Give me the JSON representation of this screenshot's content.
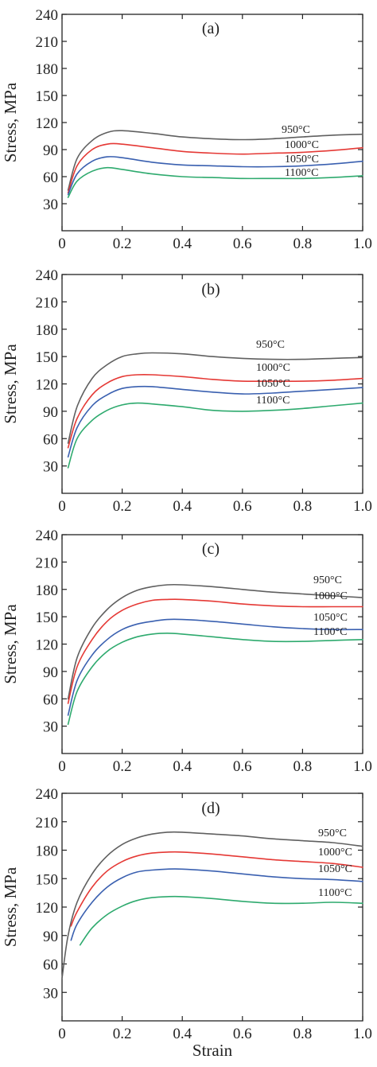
{
  "chart_data": [
    {
      "type": "line",
      "panel_label": "(a)",
      "xlabel": "",
      "ylabel": "Stress, MPa",
      "xlim": [
        0,
        1.0
      ],
      "ylim": [
        0,
        240
      ],
      "x_ticks": [
        "0",
        "0.2",
        "0.4",
        "0.6",
        "0.8",
        "1.0"
      ],
      "y_ticks": [
        "30",
        "60",
        "90",
        "120",
        "150",
        "180",
        "210",
        "240"
      ],
      "series": [
        {
          "name": "950°C",
          "color": "#606060",
          "x": [
            0.02,
            0.05,
            0.1,
            0.15,
            0.2,
            0.3,
            0.4,
            0.5,
            0.6,
            0.7,
            0.8,
            0.9,
            1.0
          ],
          "y": [
            45,
            80,
            100,
            109,
            111,
            108,
            104,
            102,
            101,
            102,
            104,
            106,
            107
          ]
        },
        {
          "name": "1000°C",
          "color": "#e53935",
          "x": [
            0.02,
            0.05,
            0.1,
            0.15,
            0.2,
            0.3,
            0.4,
            0.5,
            0.6,
            0.7,
            0.8,
            0.9,
            1.0
          ],
          "y": [
            42,
            72,
            90,
            96,
            96,
            92,
            88,
            86,
            85,
            86,
            87,
            89,
            92
          ]
        },
        {
          "name": "1050°C",
          "color": "#3a60b0",
          "x": [
            0.02,
            0.05,
            0.1,
            0.15,
            0.2,
            0.3,
            0.4,
            0.5,
            0.6,
            0.7,
            0.8,
            0.9,
            1.0
          ],
          "y": [
            40,
            63,
            77,
            82,
            81,
            76,
            73,
            72,
            71,
            71,
            72,
            74,
            77
          ]
        },
        {
          "name": "1100°C",
          "color": "#2eaa6e",
          "x": [
            0.02,
            0.05,
            0.1,
            0.15,
            0.2,
            0.3,
            0.4,
            0.5,
            0.6,
            0.7,
            0.8,
            0.9,
            1.0
          ],
          "y": [
            37,
            55,
            66,
            70,
            68,
            63,
            60,
            59,
            58,
            58,
            58,
            59,
            61
          ]
        }
      ]
    },
    {
      "type": "line",
      "panel_label": "(b)",
      "xlabel": "",
      "ylabel": "Stress, MPa",
      "xlim": [
        0,
        1.0
      ],
      "ylim": [
        0,
        240
      ],
      "x_ticks": [
        "0",
        "0.2",
        "0.4",
        "0.6",
        "0.8",
        "1.0"
      ],
      "y_ticks": [
        "30",
        "60",
        "90",
        "120",
        "150",
        "180",
        "210",
        "240"
      ],
      "series": [
        {
          "name": "950°C",
          "color": "#606060",
          "x": [
            0.02,
            0.05,
            0.1,
            0.15,
            0.2,
            0.25,
            0.3,
            0.4,
            0.5,
            0.6,
            0.7,
            0.8,
            0.9,
            1.0
          ],
          "y": [
            55,
            95,
            126,
            141,
            150,
            153,
            154,
            153,
            150,
            148,
            147,
            147,
            148,
            149
          ]
        },
        {
          "name": "1000°C",
          "color": "#e53935",
          "x": [
            0.02,
            0.05,
            0.1,
            0.15,
            0.2,
            0.25,
            0.3,
            0.4,
            0.5,
            0.6,
            0.7,
            0.8,
            0.9,
            1.0
          ],
          "y": [
            50,
            82,
            108,
            121,
            128,
            130,
            130,
            128,
            125,
            123,
            123,
            123,
            124,
            126
          ]
        },
        {
          "name": "1050°C",
          "color": "#3a60b0",
          "x": [
            0.02,
            0.05,
            0.1,
            0.15,
            0.2,
            0.25,
            0.3,
            0.4,
            0.5,
            0.6,
            0.7,
            0.8,
            0.9,
            1.0
          ],
          "y": [
            40,
            72,
            96,
            108,
            115,
            117,
            117,
            114,
            111,
            109,
            110,
            112,
            114,
            116
          ]
        },
        {
          "name": "1100°C",
          "color": "#2eaa6e",
          "x": [
            0.02,
            0.05,
            0.1,
            0.15,
            0.2,
            0.25,
            0.3,
            0.4,
            0.5,
            0.6,
            0.7,
            0.8,
            0.9,
            1.0
          ],
          "y": [
            28,
            60,
            80,
            91,
            97,
            99,
            98,
            95,
            91,
            90,
            91,
            93,
            96,
            99
          ]
        }
      ]
    },
    {
      "type": "line",
      "panel_label": "(c)",
      "xlabel": "",
      "ylabel": "Stress, MPa",
      "xlim": [
        0,
        1.0
      ],
      "ylim": [
        0,
        240
      ],
      "x_ticks": [
        "0",
        "0.2",
        "0.4",
        "0.6",
        "0.8",
        "1.0"
      ],
      "y_ticks": [
        "30",
        "60",
        "90",
        "120",
        "150",
        "180",
        "210",
        "240"
      ],
      "series": [
        {
          "name": "950°C",
          "color": "#606060",
          "x": [
            0.02,
            0.05,
            0.1,
            0.15,
            0.2,
            0.25,
            0.3,
            0.35,
            0.4,
            0.5,
            0.6,
            0.7,
            0.8,
            0.9,
            1.0
          ],
          "y": [
            60,
            105,
            138,
            158,
            171,
            179,
            183,
            185,
            185,
            183,
            180,
            177,
            175,
            173,
            171
          ]
        },
        {
          "name": "1000°C",
          "color": "#e53935",
          "x": [
            0.02,
            0.05,
            0.1,
            0.15,
            0.2,
            0.25,
            0.3,
            0.35,
            0.4,
            0.5,
            0.6,
            0.7,
            0.8,
            0.9,
            1.0
          ],
          "y": [
            55,
            95,
            125,
            145,
            157,
            164,
            168,
            169,
            169,
            167,
            164,
            162,
            161,
            161,
            161
          ]
        },
        {
          "name": "1050°C",
          "color": "#3a60b0",
          "x": [
            0.02,
            0.05,
            0.1,
            0.15,
            0.2,
            0.25,
            0.3,
            0.35,
            0.4,
            0.5,
            0.6,
            0.7,
            0.8,
            0.9,
            1.0
          ],
          "y": [
            42,
            80,
            108,
            125,
            136,
            142,
            145,
            147,
            147,
            145,
            142,
            139,
            137,
            136,
            136
          ]
        },
        {
          "name": "1100°C",
          "color": "#2eaa6e",
          "x": [
            0.02,
            0.05,
            0.1,
            0.15,
            0.2,
            0.25,
            0.3,
            0.35,
            0.4,
            0.5,
            0.6,
            0.7,
            0.8,
            0.9,
            1.0
          ],
          "y": [
            32,
            68,
            95,
            112,
            122,
            128,
            131,
            132,
            131,
            128,
            125,
            123,
            123,
            124,
            125
          ]
        }
      ]
    },
    {
      "type": "line",
      "panel_label": "(d)",
      "xlabel": "Strain",
      "ylabel": "Stress, MPa",
      "xlim": [
        0,
        1.0
      ],
      "ylim": [
        0,
        240
      ],
      "x_ticks": [
        "0",
        "0.2",
        "0.4",
        "0.6",
        "0.8",
        "1.0"
      ],
      "y_ticks": [
        "30",
        "60",
        "90",
        "120",
        "150",
        "180",
        "210",
        "240"
      ],
      "series": [
        {
          "name": "950°C",
          "color": "#606060",
          "x": [
            0.0,
            0.02,
            0.05,
            0.1,
            0.15,
            0.2,
            0.25,
            0.3,
            0.35,
            0.4,
            0.5,
            0.6,
            0.7,
            0.8,
            0.9,
            1.0
          ],
          "y": [
            45,
            90,
            125,
            155,
            174,
            186,
            193,
            197,
            199,
            199,
            197,
            195,
            192,
            190,
            188,
            184
          ]
        },
        {
          "name": "1000°C",
          "color": "#e53935",
          "x": [
            0.03,
            0.05,
            0.1,
            0.15,
            0.2,
            0.25,
            0.3,
            0.35,
            0.4,
            0.5,
            0.6,
            0.7,
            0.8,
            0.9,
            1.0
          ],
          "y": [
            100,
            115,
            141,
            158,
            168,
            174,
            177,
            178,
            178,
            176,
            173,
            170,
            168,
            166,
            162
          ]
        },
        {
          "name": "1050°C",
          "color": "#3a60b0",
          "x": [
            0.03,
            0.05,
            0.1,
            0.15,
            0.2,
            0.25,
            0.3,
            0.35,
            0.4,
            0.5,
            0.6,
            0.7,
            0.8,
            0.9,
            1.0
          ],
          "y": [
            85,
            102,
            125,
            141,
            151,
            157,
            159,
            160,
            160,
            158,
            155,
            152,
            150,
            149,
            147
          ]
        },
        {
          "name": "1100°C",
          "color": "#2eaa6e",
          "x": [
            0.06,
            0.1,
            0.15,
            0.2,
            0.25,
            0.3,
            0.35,
            0.4,
            0.5,
            0.6,
            0.7,
            0.8,
            0.9,
            1.0
          ],
          "y": [
            80,
            98,
            112,
            121,
            127,
            130,
            131,
            131,
            129,
            126,
            124,
            124,
            125,
            124
          ]
        }
      ]
    }
  ]
}
